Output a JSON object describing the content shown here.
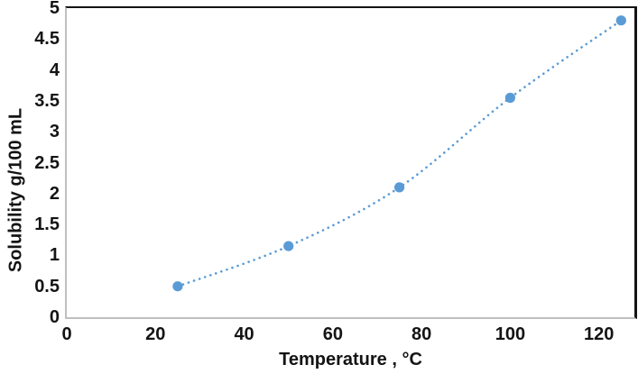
{
  "chart_data": {
    "type": "scatter",
    "title": "",
    "xlabel": "Temperature , °C",
    "ylabel": "Solubility g/100 mL",
    "x": [
      25,
      50,
      75,
      100,
      125
    ],
    "y": [
      0.5,
      1.15,
      2.1,
      3.55,
      4.8
    ],
    "x_ticks": [
      0,
      20,
      40,
      60,
      80,
      100,
      120
    ],
    "y_ticks": [
      0,
      0.5,
      1,
      1.5,
      2,
      2.5,
      3,
      3.5,
      4,
      4.5,
      5
    ],
    "xlim": [
      0,
      128
    ],
    "ylim": [
      0,
      5
    ],
    "grid": false,
    "legend": false,
    "line_style": "dotted",
    "marker": "circle",
    "marker_color": "#5B9BD5",
    "line_color": "#5B9BD5",
    "frame_color": "#141414",
    "axis_line_color": "#bfbfbf",
    "text_color": "#141414",
    "background_color": "#ffffff"
  }
}
